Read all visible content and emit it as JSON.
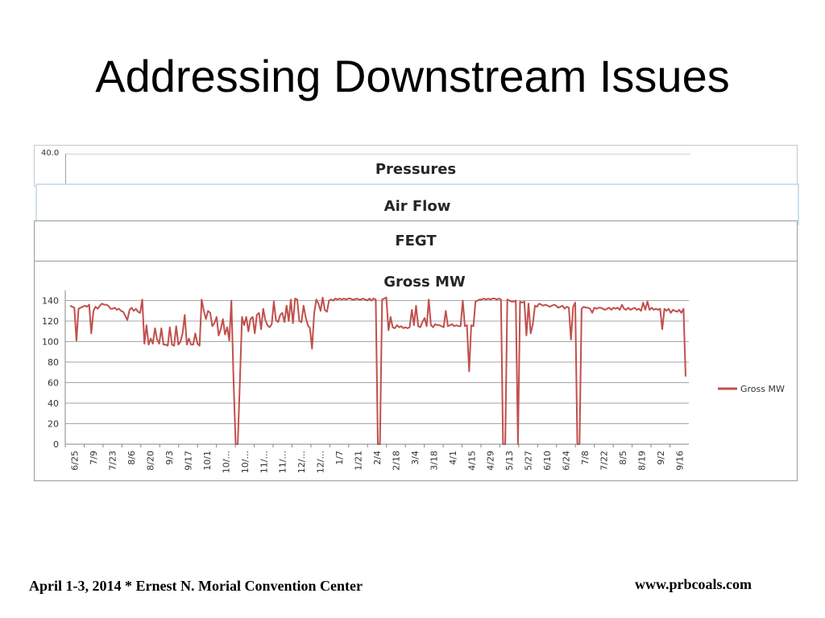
{
  "slide": {
    "title": "Addressing Downstream Issues",
    "footer_left": "April 1-3, 2014 * Ernest N. Morial Convention Center",
    "footer_right": "www.prbcoals.com"
  },
  "panels": {
    "pressures": {
      "title": "Pressures",
      "tick_top": "40.0"
    },
    "airflow": {
      "title": "Air Flow"
    },
    "fegt": {
      "title": "FEGT"
    }
  },
  "colors": {
    "series": "#c0504d",
    "grid": "#a6a6a6",
    "axis": "#868686"
  },
  "chart_data": {
    "type": "line",
    "title": "Gross MW",
    "xlabel": "",
    "ylabel": "",
    "ylim": [
      0,
      150
    ],
    "yticks": [
      0,
      20,
      40,
      60,
      80,
      100,
      120,
      140
    ],
    "grid": true,
    "legend": "right",
    "x_tick_labels": [
      "6/25",
      "7/9",
      "7/23",
      "8/6",
      "8/20",
      "9/3",
      "9/17",
      "10/1",
      "10/...",
      "10/...",
      "11/...",
      "11/...",
      "12/...",
      "12/...",
      "1/7",
      "1/21",
      "2/4",
      "2/18",
      "3/4",
      "3/18",
      "4/1",
      "4/15",
      "4/29",
      "5/13",
      "5/27",
      "6/10",
      "6/24",
      "7/8",
      "7/22",
      "8/5",
      "8/19",
      "9/2",
      "9/16"
    ],
    "series": [
      {
        "name": "Gross MW",
        "values": [
          135,
          134,
          133,
          101,
          132,
          133,
          134,
          135,
          134,
          136,
          108,
          130,
          134,
          132,
          135,
          137,
          136,
          136,
          135,
          132,
          132,
          133,
          131,
          132,
          130,
          129,
          125,
          121,
          131,
          133,
          130,
          132,
          129,
          128,
          141,
          98,
          116,
          97,
          103,
          98,
          113,
          102,
          98,
          113,
          97,
          97,
          96,
          114,
          97,
          96,
          115,
          97,
          100,
          108,
          126,
          97,
          103,
          97,
          97,
          108,
          98,
          96,
          141,
          130,
          122,
          130,
          128,
          115,
          118,
          124,
          106,
          112,
          122,
          107,
          114,
          101,
          140,
          62,
          0,
          0,
          62,
          124,
          116,
          124,
          110,
          122,
          124,
          108,
          126,
          128,
          112,
          132,
          121,
          116,
          114,
          117,
          139,
          121,
          119,
          126,
          128,
          119,
          135,
          120,
          141,
          118,
          142,
          141,
          120,
          119,
          135,
          124,
          116,
          113,
          93,
          128,
          141,
          137,
          130,
          143,
          131,
          129,
          140,
          141,
          140,
          142,
          141,
          142,
          141,
          142,
          141,
          142,
          142,
          141,
          141,
          142,
          141,
          141,
          142,
          141,
          140,
          142,
          140,
          142,
          141,
          0,
          0,
          141,
          142,
          143,
          111,
          124,
          114,
          113,
          116,
          114,
          115,
          113,
          114,
          113,
          114,
          131,
          116,
          135,
          115,
          114,
          119,
          123,
          115,
          141,
          116,
          114,
          117,
          116,
          116,
          115,
          114,
          130,
          115,
          116,
          117,
          115,
          116,
          115,
          115,
          140,
          115,
          116,
          71,
          116,
          115,
          139,
          140,
          141,
          141,
          142,
          141,
          142,
          141,
          142,
          142,
          141,
          142,
          141,
          0,
          0,
          141,
          140,
          139,
          139,
          140,
          0,
          139,
          138,
          139,
          106,
          137,
          108,
          117,
          135,
          134,
          137,
          136,
          135,
          136,
          135,
          134,
          135,
          136,
          135,
          133,
          134,
          135,
          132,
          134,
          133,
          102,
          134,
          138,
          0,
          0,
          132,
          134,
          133,
          133,
          132,
          128,
          133,
          132,
          133,
          133,
          132,
          131,
          132,
          133,
          131,
          133,
          132,
          133,
          131,
          136,
          132,
          131,
          133,
          131,
          132,
          133,
          131,
          132,
          130,
          138,
          131,
          139,
          131,
          133,
          131,
          132,
          131,
          132,
          112,
          132,
          130,
          132,
          128,
          131,
          130,
          129,
          131,
          128,
          132,
          66
        ]
      }
    ]
  }
}
